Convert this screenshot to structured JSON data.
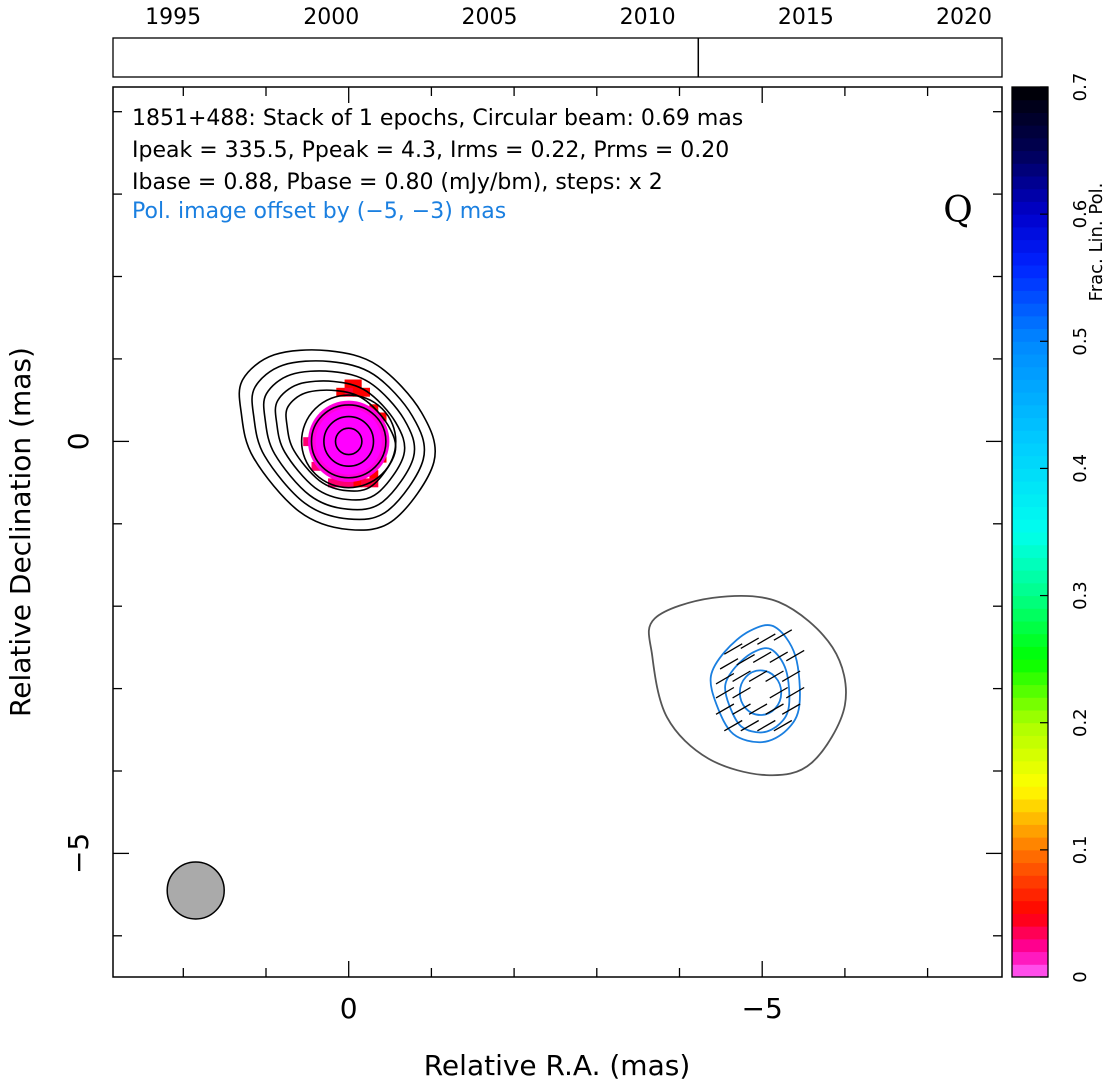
{
  "chart_data": {
    "type": "contour-map",
    "source": "1851+488",
    "annotations": {
      "line1": "1851+488: Stack of 1 epochs, Circular beam: 0.69 mas",
      "line2": "Ipeak = 335.5, Ppeak = 4.3, Irms = 0.22, Prms = 0.20",
      "line3": "Ibase = 0.88, Pbase = 0.80 (mJy/bm), steps: x 2",
      "line4": "Pol. image offset by (−5, −3) mas",
      "quality_flag": "Q"
    },
    "axes": {
      "xlabel": "Relative R.A. (mas)",
      "ylabel": "Relative Declination (mas)",
      "xlim": [
        2.85,
        -7.9
      ],
      "ylim": [
        -6.5,
        4.3
      ],
      "x_tick_labels": [
        "0",
        "−5"
      ],
      "y_tick_labels": [
        "0",
        "−5"
      ],
      "x_major_ticks": [
        0,
        -5
      ],
      "y_major_ticks": [
        0,
        -5
      ],
      "x_minor_ticks": [
        2,
        1,
        -1,
        -2,
        -3,
        -4,
        -6,
        -7
      ],
      "y_minor_ticks": [
        4,
        3,
        2,
        1,
        -1,
        -2,
        -3,
        -4,
        -6
      ]
    },
    "timeline": {
      "range": [
        1993.1,
        2021.2
      ],
      "tick_labels": [
        "1995",
        "2000",
        "2005",
        "2010",
        "2015",
        "2020"
      ],
      "tick_years": [
        1995,
        2000,
        2005,
        2010,
        2015,
        2020
      ],
      "epochs": [
        2011.6
      ]
    },
    "colorbar": {
      "label": "Frac. Lin. Pol.",
      "range": [
        0,
        0.7
      ],
      "tick_labels": [
        "0",
        "0.1",
        "0.2",
        "0.3",
        "0.4",
        "0.5",
        "0.6",
        "0.7"
      ],
      "tick_values": [
        0,
        0.1,
        0.2,
        0.3,
        0.4,
        0.5,
        0.6,
        0.7
      ]
    },
    "stokes_i_contours": {
      "center": [
        0,
        0
      ],
      "base_mJy_per_beam": 0.88,
      "step_factor": 2,
      "color": "#000000",
      "levels": [
        {
          "rx": 1.3,
          "ry": 0.9
        },
        {
          "rx": 0.82,
          "ry": 0.78
        },
        {
          "rx": 0.67,
          "ry": 0.66
        },
        {
          "rx": 0.57,
          "ry": 0.56
        },
        {
          "rx": 0.45,
          "ry": 0.44
        },
        {
          "rx": 0.3,
          "ry": 0.3
        },
        {
          "rx": 0.16,
          "ry": 0.16
        }
      ],
      "outer_contour_points": [
        [
          1.28,
          0.75
        ],
        [
          0.9,
          1.05
        ],
        [
          0.25,
          1.1
        ],
        [
          -0.35,
          0.92
        ],
        [
          -0.88,
          0.35
        ],
        [
          -1.03,
          -0.25
        ],
        [
          -0.55,
          -0.95
        ],
        [
          0.0,
          -1.07
        ],
        [
          0.6,
          -0.85
        ],
        [
          1.15,
          -0.2
        ],
        [
          1.3,
          0.35
        ]
      ]
    },
    "fractional_polarization_pixels": {
      "pixel_mas": 0.1,
      "values_note": "fractional linear polarization",
      "cells": [
        {
          "x": 0.0,
          "y": 0.7,
          "val": 0.05
        },
        {
          "x": -0.1,
          "y": 0.7,
          "val": 0.05
        },
        {
          "x": 0.1,
          "y": 0.6,
          "val": 0.05
        },
        {
          "x": 0.0,
          "y": 0.6,
          "val": 0.04
        },
        {
          "x": -0.1,
          "y": 0.6,
          "val": 0.05
        },
        {
          "x": -0.2,
          "y": 0.6,
          "val": 0.05
        },
        {
          "x": -0.3,
          "y": 0.4,
          "val": 0.05
        },
        {
          "x": -0.4,
          "y": 0.3,
          "val": 0.05
        },
        {
          "x": -0.4,
          "y": 0.0,
          "val": 0.05
        },
        {
          "x": -0.4,
          "y": -0.2,
          "val": 0.05
        },
        {
          "x": -0.3,
          "y": -0.4,
          "val": 0.05
        },
        {
          "x": -0.1,
          "y": -0.5,
          "val": 0.05
        },
        {
          "x": -0.3,
          "y": -0.5,
          "val": 0.04
        },
        {
          "x": -0.2,
          "y": -0.5,
          "val": 0.04
        },
        {
          "x": 0.0,
          "y": -0.5,
          "val": 0.03
        },
        {
          "x": 0.1,
          "y": -0.5,
          "val": 0.03
        },
        {
          "x": 0.2,
          "y": -0.5,
          "val": 0.03
        },
        {
          "x": 0.4,
          "y": 0.1,
          "val": 0.03
        },
        {
          "x": 0.5,
          "y": 0.0,
          "val": 0.03
        },
        {
          "x": 0.4,
          "y": -0.3,
          "val": 0.03
        },
        {
          "x": 0.3,
          "y": 0.3,
          "val": 0.02
        },
        {
          "x": 0.0,
          "y": 0.0,
          "val": 0.01
        }
      ],
      "core_fill_radius_mas": 0.6
    },
    "polarized_intensity": {
      "offset_mas": [
        -5,
        -3
      ],
      "source_center": [
        -5.0,
        -3.05
      ],
      "gray_outline_color": "#555555",
      "gray_outline_points": [
        [
          -3.7,
          -2.15
        ],
        [
          -4.4,
          -1.9
        ],
        [
          -5.2,
          -1.95
        ],
        [
          -5.85,
          -2.5
        ],
        [
          -6.0,
          -3.2
        ],
        [
          -5.6,
          -3.9
        ],
        [
          -5.05,
          -4.05
        ],
        [
          -4.35,
          -3.85
        ],
        [
          -3.85,
          -3.35
        ],
        [
          -3.67,
          -2.6
        ]
      ],
      "blue_contour_color": "#1a7fe0",
      "blue_outer_points": [
        [
          -4.55,
          -2.55
        ],
        [
          -4.85,
          -2.3
        ],
        [
          -5.15,
          -2.25
        ],
        [
          -5.4,
          -2.6
        ],
        [
          -5.45,
          -3.2
        ],
        [
          -5.3,
          -3.5
        ],
        [
          -5.0,
          -3.65
        ],
        [
          -4.65,
          -3.55
        ],
        [
          -4.45,
          -3.2
        ],
        [
          -4.38,
          -2.85
        ]
      ],
      "blue_inner": {
        "cx": -4.98,
        "cy": -3.05,
        "rx": 0.25,
        "ry": 0.27
      },
      "evpa_deg_from_x": 30,
      "evpa_length_mas": 0.25,
      "evpa_ticks": [
        [
          -5.25,
          -2.35
        ],
        [
          -5.05,
          -2.4
        ],
        [
          -4.85,
          -2.45
        ],
        [
          -4.65,
          -2.52
        ],
        [
          -5.4,
          -2.6
        ],
        [
          -5.2,
          -2.62
        ],
        [
          -5.0,
          -2.62
        ],
        [
          -4.8,
          -2.65
        ],
        [
          -4.6,
          -2.7
        ],
        [
          -5.35,
          -2.85
        ],
        [
          -5.15,
          -2.85
        ],
        [
          -4.95,
          -2.85
        ],
        [
          -4.75,
          -2.85
        ],
        [
          -4.55,
          -2.88
        ],
        [
          -5.4,
          -3.05
        ],
        [
          -5.2,
          -3.05
        ],
        [
          -4.75,
          -3.05
        ],
        [
          -4.55,
          -3.05
        ],
        [
          -5.35,
          -3.25
        ],
        [
          -5.15,
          -3.25
        ],
        [
          -4.95,
          -3.25
        ],
        [
          -4.75,
          -3.25
        ],
        [
          -4.55,
          -3.25
        ],
        [
          -5.25,
          -3.45
        ],
        [
          -5.05,
          -3.45
        ],
        [
          -4.85,
          -3.45
        ],
        [
          -4.65,
          -3.45
        ]
      ]
    },
    "beam": {
      "center": [
        1.85,
        -5.45
      ],
      "diameter_mas": 0.69,
      "fill": "#aaaaaa"
    }
  }
}
